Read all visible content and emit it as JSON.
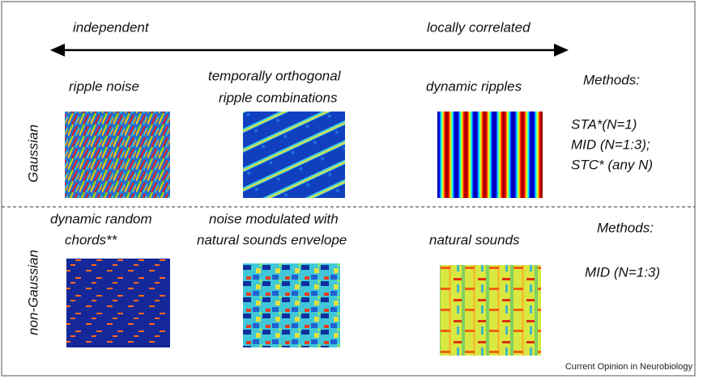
{
  "header": {
    "left_label": "independent",
    "right_label": "locally correlated"
  },
  "rows": [
    {
      "label": "Gaussian",
      "items": [
        {
          "title": [
            "ripple noise"
          ]
        },
        {
          "title": [
            "temporally orthogonal",
            "ripple combinations"
          ]
        },
        {
          "title": [
            "dynamic ripples"
          ]
        }
      ],
      "methods_title": "Methods:",
      "methods": [
        "STA*(N=1)",
        "MID (N=1:3);",
        "STC* (any N)"
      ]
    },
    {
      "label": "non-Gaussian",
      "items": [
        {
          "title": [
            "dynamic random",
            "chords**"
          ]
        },
        {
          "title": [
            "noise modulated with",
            "natural sounds envelope"
          ]
        },
        {
          "title": [
            "natural sounds"
          ]
        }
      ],
      "methods_title": "Methods:",
      "methods": [
        "MID (N=1:3)"
      ]
    }
  ],
  "footer": {
    "credit": "Current Opinion in Neurobiology"
  }
}
